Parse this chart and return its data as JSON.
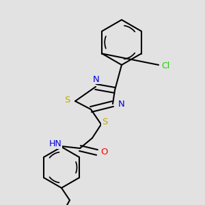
{
  "background_color": "#e2e2e2",
  "bond_color": "#000000",
  "bond_width": 1.5,
  "atom_colors": {
    "N": "#0000dd",
    "S": "#bbaa00",
    "O": "#ff0000",
    "Cl": "#22cc00",
    "C": "#000000"
  },
  "fig_width": 3.0,
  "fig_height": 3.0,
  "dpi": 100,
  "xlim": [
    0,
    300
  ],
  "ylim": [
    0,
    300
  ]
}
